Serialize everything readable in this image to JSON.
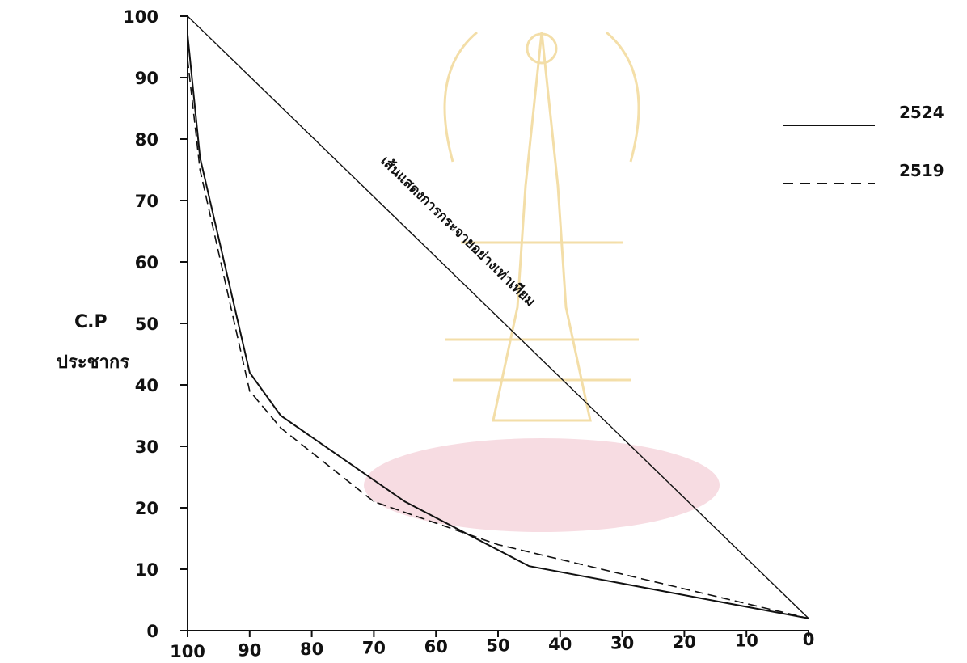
{
  "chart_data": {
    "type": "line",
    "title": "",
    "ylabel": [
      "C.P",
      "ประชากร"
    ],
    "xlabel": "",
    "xlim": [
      100,
      0
    ],
    "ylim": [
      0,
      100
    ],
    "x_ticks": [
      100,
      90,
      80,
      70,
      60,
      50,
      40,
      30,
      20,
      10,
      0
    ],
    "y_ticks": [
      0,
      10,
      20,
      30,
      40,
      50,
      60,
      70,
      80,
      90,
      100
    ],
    "grid": false,
    "legend": "top-right",
    "series": [
      {
        "name": "2524",
        "style": "solid",
        "x": [
          100,
          98,
          90,
          85,
          65,
          45,
          0
        ],
        "y": [
          97,
          77,
          42,
          35,
          21,
          10.5,
          2
        ]
      },
      {
        "name": "2519",
        "style": "dashed",
        "x": [
          100,
          98,
          90,
          85,
          70,
          50,
          0
        ],
        "y": [
          93,
          75,
          39,
          33,
          21,
          14,
          2
        ]
      }
    ],
    "reference_line": {
      "label": "เส้นแสดงการกระจายอย่างเท่าเทียม",
      "x": [
        100,
        0
      ],
      "y": [
        100,
        2
      ]
    },
    "colors": {
      "line": "#111111",
      "watermark": "#f2d99a",
      "watermark_fill": "#f6d6dd"
    }
  }
}
